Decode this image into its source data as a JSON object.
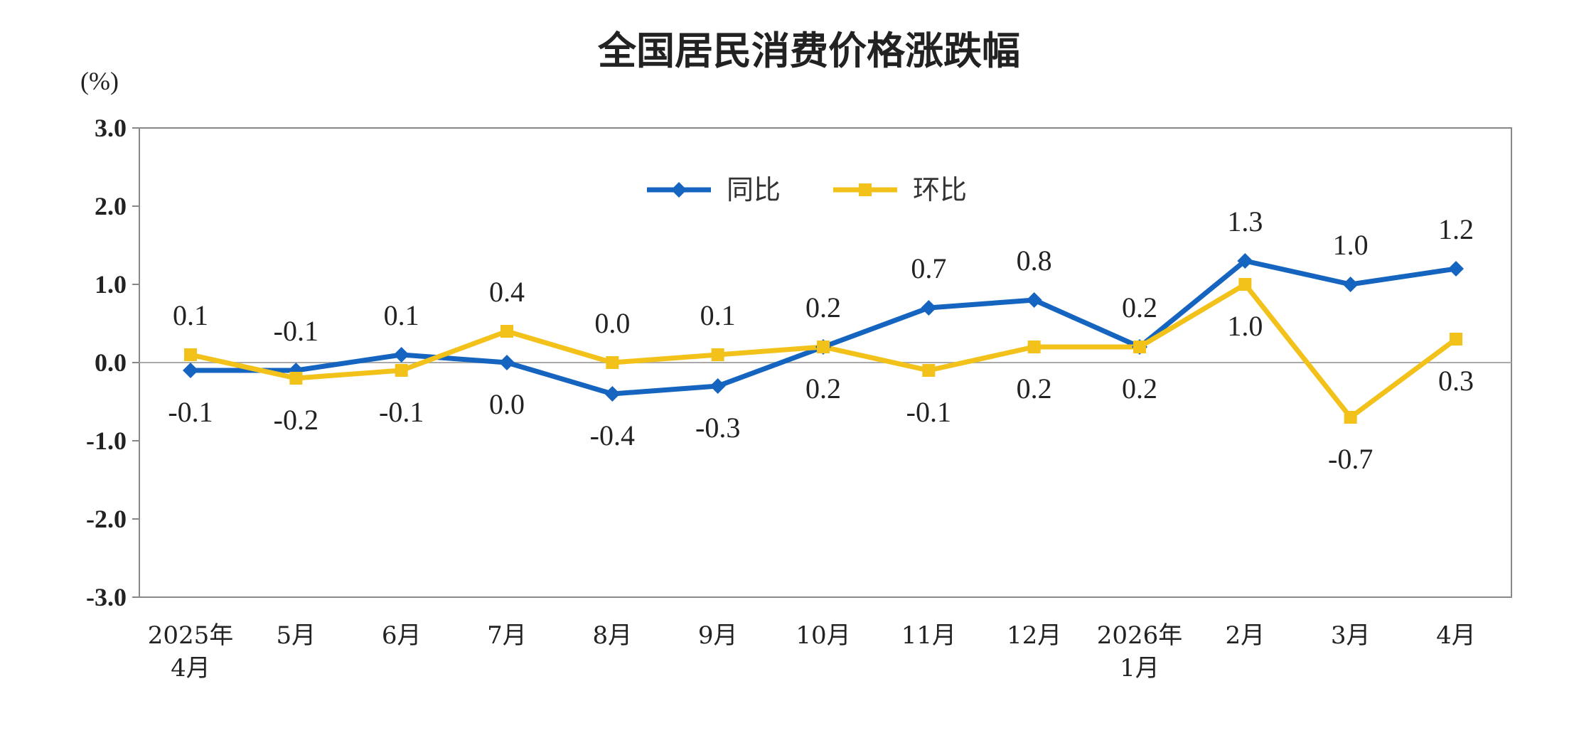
{
  "chart_data": {
    "type": "line",
    "title": "全国居民消费价格涨跌幅",
    "unit_label": "(%)",
    "categories": [
      [
        "2025年",
        "4月"
      ],
      [
        "5月"
      ],
      [
        "6月"
      ],
      [
        "7月"
      ],
      [
        "8月"
      ],
      [
        "9月"
      ],
      [
        "10月"
      ],
      [
        "11月"
      ],
      [
        "12月"
      ],
      [
        "2026年",
        "1月"
      ],
      [
        "2月"
      ],
      [
        "3月"
      ],
      [
        "4月"
      ]
    ],
    "ylim": [
      -3.0,
      3.0
    ],
    "yticks": [
      "3.0",
      "2.0",
      "1.0",
      "0.0",
      "-1.0",
      "-2.0",
      "-3.0"
    ],
    "ytick_values": [
      3,
      2,
      1,
      0,
      -1,
      -2,
      -3
    ],
    "legend_position": "top-center",
    "grid": false,
    "series": [
      {
        "name": "同比",
        "color": "#1565C0",
        "marker": "diamond",
        "values": [
          -0.1,
          -0.1,
          0.1,
          0.0,
          -0.4,
          -0.3,
          0.2,
          0.7,
          0.8,
          0.2,
          1.3,
          1.0,
          1.2
        ],
        "labels": [
          "-0.1",
          "-0.1",
          "0.1",
          "0.0",
          "-0.4",
          "-0.3",
          "0.2",
          "0.7",
          "0.8",
          "0.2",
          "1.3",
          "1.0",
          "1.2"
        ]
      },
      {
        "name": "环比",
        "color": "#F2C21B",
        "marker": "square",
        "values": [
          0.1,
          -0.2,
          -0.1,
          0.4,
          0.0,
          0.1,
          0.2,
          -0.1,
          0.2,
          0.2,
          1.0,
          -0.7,
          0.3
        ],
        "labels": [
          "0.1",
          "-0.2",
          "-0.1",
          "0.4",
          "0.0",
          "0.1",
          "0.2",
          "-0.1",
          "0.2",
          "0.2",
          "1.0",
          "-0.7",
          "0.3"
        ]
      }
    ]
  }
}
